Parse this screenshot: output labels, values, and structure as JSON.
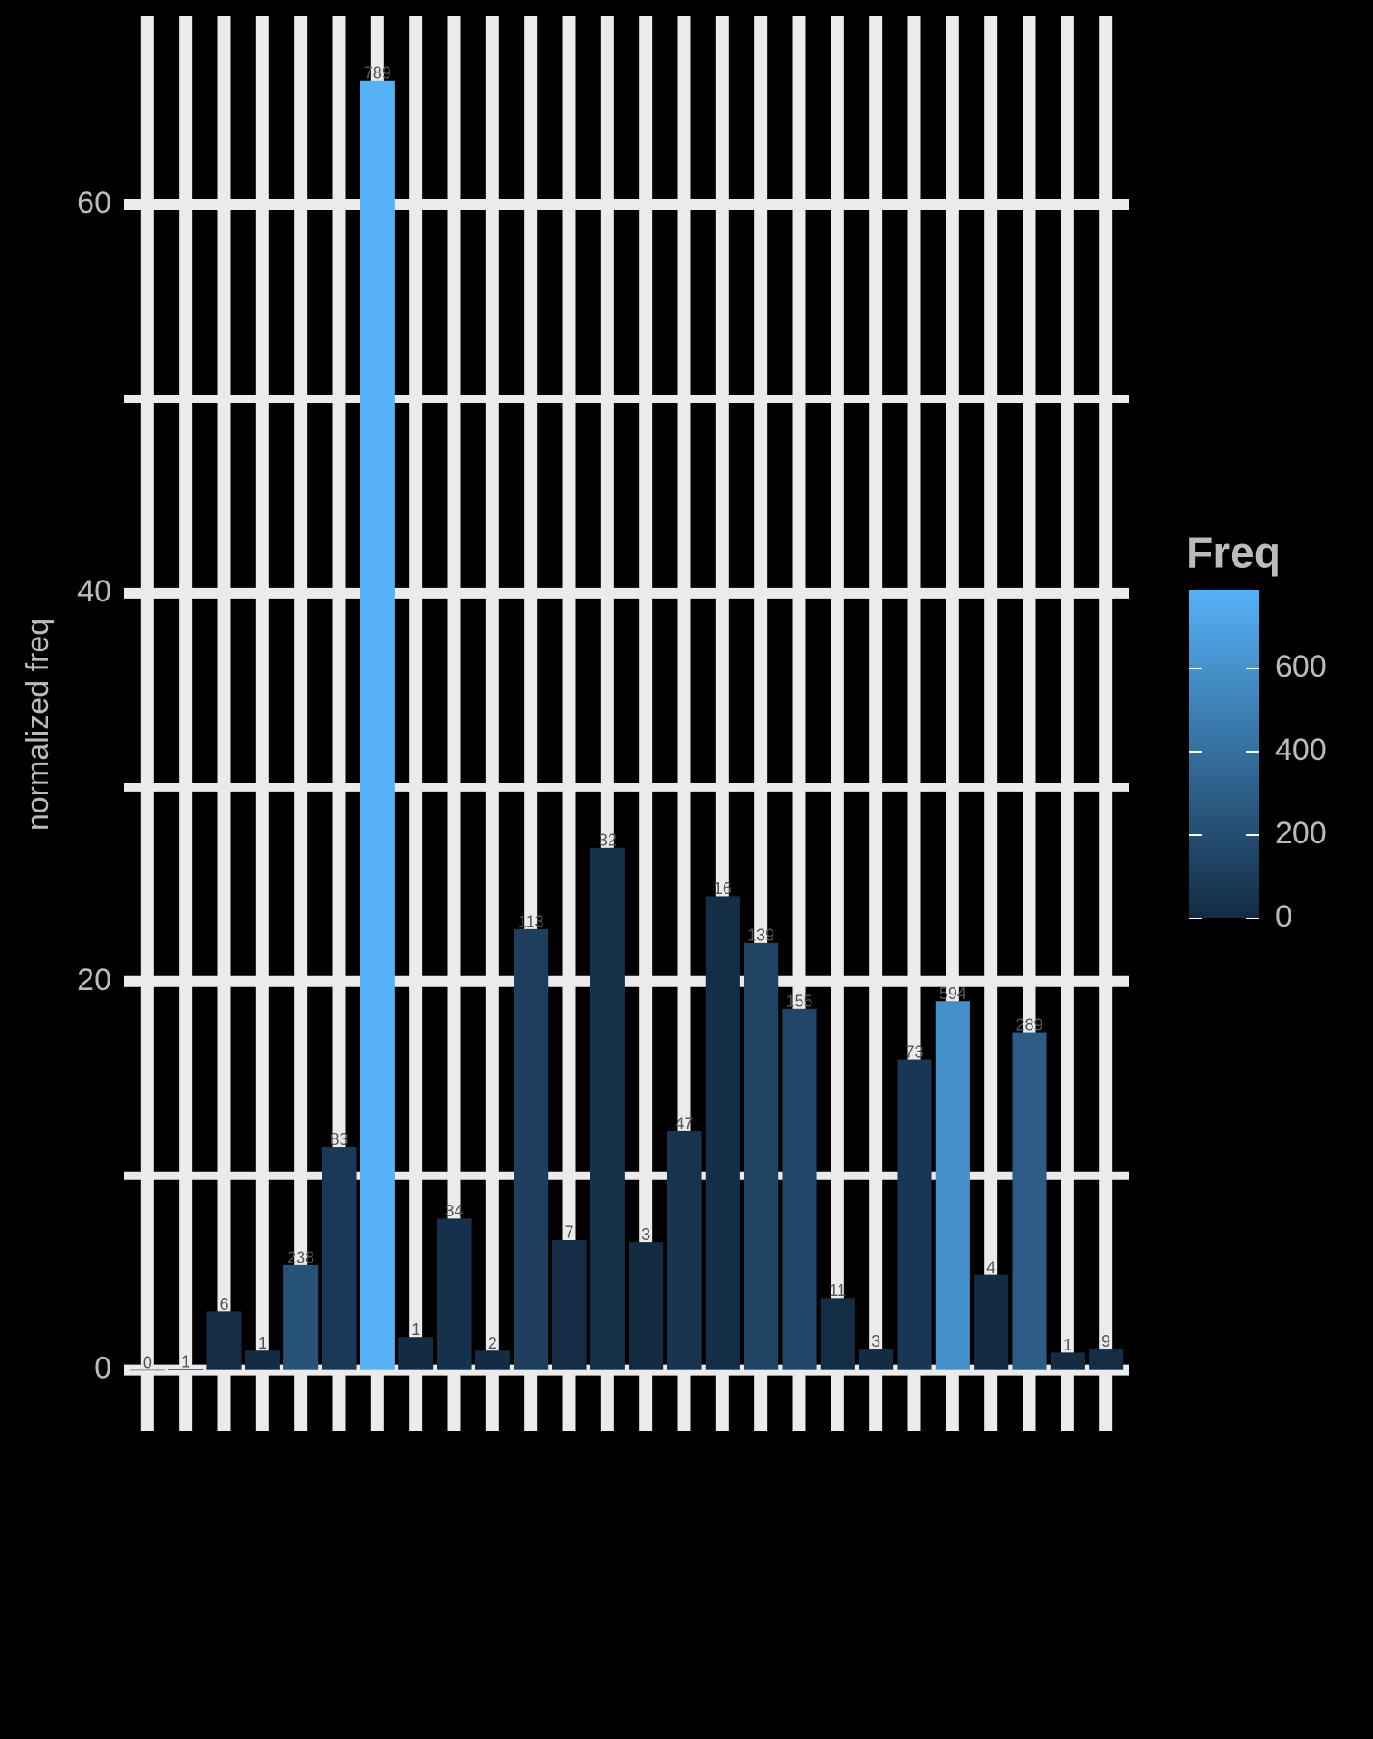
{
  "chart_data": {
    "type": "bar",
    "y_label": "normalized freq",
    "legend_title": "Freq",
    "categories": [
      null,
      null,
      null,
      null,
      null,
      null,
      null,
      null,
      null,
      null,
      null,
      null,
      null,
      null,
      null,
      null,
      null,
      null,
      null,
      null,
      null,
      null,
      null,
      null,
      null,
      null
    ],
    "values": [
      0,
      0.05,
      3.0,
      1.0,
      5.4,
      11.5,
      66.4,
      1.7,
      7.8,
      1.0,
      22.7,
      6.7,
      26.9,
      6.6,
      12.3,
      24.4,
      22.0,
      18.6,
      3.7,
      1.1,
      16.0,
      19.0,
      4.9,
      17.4,
      0.9,
      1.1
    ],
    "freq": [
      0,
      1,
      6,
      1,
      238,
      83,
      789,
      1,
      34,
      2,
      113,
      7,
      32,
      3,
      47,
      16,
      139,
      155,
      11,
      3,
      73,
      594,
      4,
      289,
      1,
      9
    ],
    "ylim": [
      -3.14,
      69.7
    ],
    "yticks": [
      0,
      20,
      40,
      60
    ],
    "y_minor_ticks": [
      10,
      30,
      50
    ],
    "grid": true,
    "low_color": "#132B43",
    "high_color": "#56B1F7",
    "freq_lim": [
      0,
      789
    ],
    "freq_ticks": [
      0,
      200,
      400,
      600
    ]
  }
}
